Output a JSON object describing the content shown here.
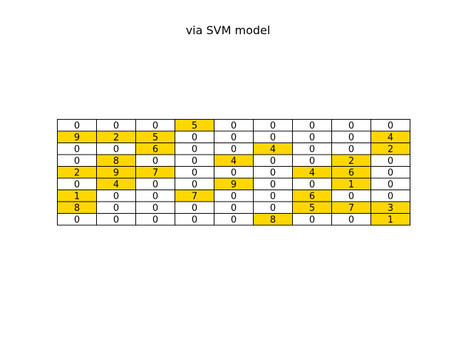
{
  "chart_data": {
    "type": "table",
    "title": "via SVM model",
    "rows": [
      [
        0,
        0,
        0,
        5,
        0,
        0,
        0,
        0,
        0
      ],
      [
        9,
        2,
        5,
        0,
        0,
        0,
        0,
        0,
        4
      ],
      [
        0,
        0,
        6,
        0,
        0,
        4,
        0,
        0,
        2
      ],
      [
        0,
        8,
        0,
        0,
        4,
        0,
        0,
        2,
        0
      ],
      [
        2,
        9,
        7,
        0,
        0,
        0,
        4,
        6,
        0
      ],
      [
        0,
        4,
        0,
        0,
        9,
        0,
        0,
        1,
        0
      ],
      [
        1,
        0,
        0,
        7,
        0,
        0,
        6,
        0,
        0
      ],
      [
        8,
        0,
        0,
        0,
        0,
        0,
        5,
        7,
        3
      ],
      [
        0,
        0,
        0,
        0,
        0,
        8,
        0,
        0,
        1
      ]
    ],
    "highlight_rule": "nonzero cells highlighted",
    "colors": {
      "highlight": "#FFD700",
      "cell": "#FFFFFF",
      "border": "#000000",
      "text": "#000000"
    }
  }
}
